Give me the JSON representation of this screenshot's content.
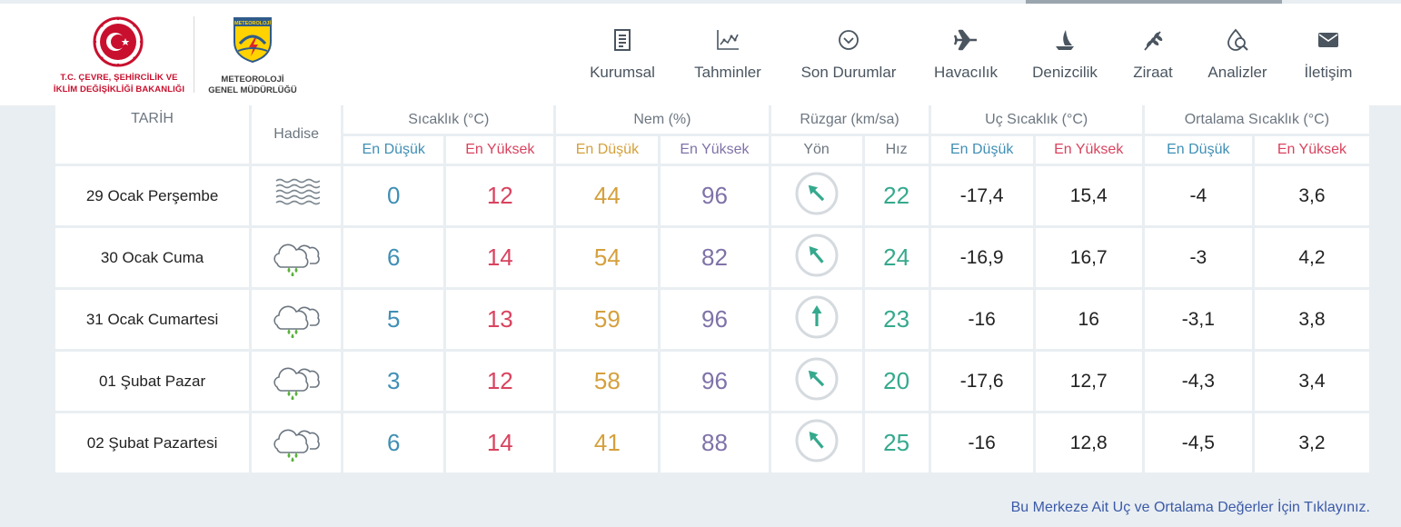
{
  "header": {
    "ministry_line1": "T.C. ÇEVRE, ŞEHİRCİLİK VE",
    "ministry_line2": "İKLİM DEĞİŞİKLİĞİ BAKANLIĞI",
    "mgm_badge": "METEOROLOJİ",
    "mgm_line1": "METEOROLOJİ",
    "mgm_line2": "GENEL MÜDÜRLÜĞÜ"
  },
  "nav": [
    {
      "label": "Kurumsal",
      "icon": "document-icon"
    },
    {
      "label": "Tahminler",
      "icon": "chart-icon"
    },
    {
      "label": "Son Durumlar",
      "icon": "chevron-circle-icon"
    },
    {
      "label": "Havacılık",
      "icon": "plane-icon"
    },
    {
      "label": "Denizcilik",
      "icon": "sailboat-icon"
    },
    {
      "label": "Ziraat",
      "icon": "wheat-icon"
    },
    {
      "label": "Analizler",
      "icon": "analysis-icon"
    },
    {
      "label": "İletişim",
      "icon": "mail-icon"
    }
  ],
  "table": {
    "headers": {
      "date": "TARİH",
      "event": "Hadise",
      "temp": "Sıcaklık (°C)",
      "humidity": "Nem (%)",
      "wind": "Rüzgar (km/sa)",
      "extreme": "Uç Sıcaklık (°C)",
      "average": "Ortalama Sıcaklık (°C)",
      "min": "En Düşük",
      "max": "En Yüksek",
      "direction": "Yön",
      "speed": "Hız"
    },
    "rows": [
      {
        "date": "29 Ocak Perşembe",
        "event": "fog-icon",
        "tmin": "0",
        "tmax": "12",
        "hmin": "44",
        "hmax": "96",
        "wind_dir_deg": 315,
        "speed": "22",
        "emin": "-17,4",
        "emax": "15,4",
        "amin": "-4",
        "amax": "3,6"
      },
      {
        "date": "30 Ocak Cuma",
        "event": "rain-cloud-icon",
        "tmin": "6",
        "tmax": "14",
        "hmin": "54",
        "hmax": "82",
        "wind_dir_deg": 320,
        "speed": "24",
        "emin": "-16,9",
        "emax": "16,7",
        "amin": "-3",
        "amax": "4,2"
      },
      {
        "date": "31 Ocak Cumartesi",
        "event": "rain-cloud-icon",
        "tmin": "5",
        "tmax": "13",
        "hmin": "59",
        "hmax": "96",
        "wind_dir_deg": 0,
        "speed": "23",
        "emin": "-16",
        "emax": "16",
        "amin": "-3,1",
        "amax": "3,8"
      },
      {
        "date": "01 Şubat Pazar",
        "event": "rain-cloud-icon",
        "tmin": "3",
        "tmax": "12",
        "hmin": "58",
        "hmax": "96",
        "wind_dir_deg": 315,
        "speed": "20",
        "emin": "-17,6",
        "emax": "12,7",
        "amin": "-4,3",
        "amax": "3,4"
      },
      {
        "date": "02 Şubat Pazartesi",
        "event": "rain-cloud-icon",
        "tmin": "6",
        "tmax": "14",
        "hmin": "41",
        "hmax": "88",
        "wind_dir_deg": 320,
        "speed": "25",
        "emin": "-16",
        "emax": "12,8",
        "amin": "-4,5",
        "amax": "3,2"
      }
    ]
  },
  "footer_link": "Bu Merkeze Ait Uç ve Ortalama Değerler İçin Tıklayınız.",
  "colors": {
    "min": "#3f8fb5",
    "max": "#d9435f",
    "hum_min": "#d5a03c",
    "hum_max": "#7f72a8",
    "wind": "#35a98d",
    "nav_text": "#4a5560",
    "ministry_red": "#c8102e"
  }
}
